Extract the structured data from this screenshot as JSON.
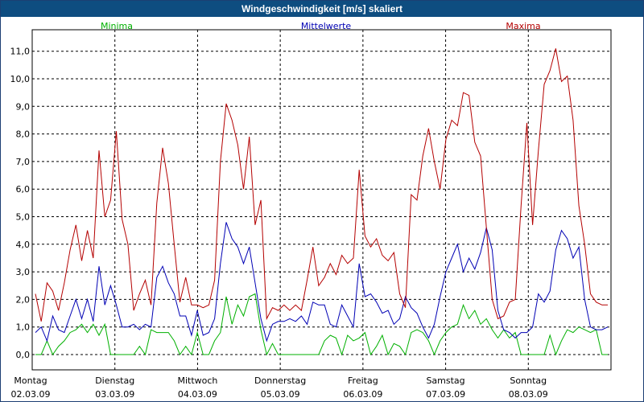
{
  "window": {
    "title": "Windgeschwindigkeit [m/s] skaliert"
  },
  "chart_data": {
    "type": "line",
    "title": "Windgeschwindigkeit [m/s] skaliert",
    "ylim": [
      0,
      11.6
    ],
    "y_ticks": [
      "0,0",
      "1,0",
      "2,0",
      "3,0",
      "4,0",
      "5,0",
      "6,0",
      "7,0",
      "8,0",
      "9,0",
      "10,0",
      "11,0"
    ],
    "days": [
      {
        "day": "Montag",
        "date": "02.03.09"
      },
      {
        "day": "Dienstag",
        "date": "03.03.09"
      },
      {
        "day": "Mittwoch",
        "date": "04.03.09"
      },
      {
        "day": "Donnerstag",
        "date": "05.03.09"
      },
      {
        "day": "Freitag",
        "date": "06.03.09"
      },
      {
        "day": "Samstag",
        "date": "07.03.09"
      },
      {
        "day": "Sonntag",
        "date": "08.03.09"
      }
    ],
    "grid": true,
    "legend_position": "top",
    "series": [
      {
        "name": "Minima",
        "color": "#00b000",
        "values": [
          0,
          0,
          0.5,
          0,
          0.3,
          0.5,
          0.8,
          0.9,
          1.1,
          0.8,
          1.1,
          0.7,
          1.1,
          0,
          0,
          0,
          0,
          0,
          0.3,
          0,
          0.9,
          0.8,
          0.8,
          0.8,
          0.5,
          0,
          0.3,
          0,
          0.8,
          0,
          0,
          0.5,
          0.8,
          2.1,
          1.1,
          1.8,
          1.4,
          2.1,
          2.2,
          0.9,
          0,
          0.4,
          0,
          0,
          0,
          0,
          0,
          0,
          0,
          0,
          0.5,
          0.7,
          0.6,
          0,
          0.7,
          0.5,
          0.6,
          0.8,
          0,
          0.3,
          0.7,
          0,
          0.4,
          0.3,
          0,
          0.8,
          0.9,
          0.8,
          0.5,
          0,
          0.5,
          0.8,
          1,
          1.1,
          1.8,
          1.3,
          1.6,
          1.1,
          1.3,
          0.9,
          0.6,
          0.9,
          0.6,
          0.8,
          0,
          0,
          0,
          0,
          0,
          0.7,
          0,
          0.5,
          0.9,
          0.8,
          1,
          0.9,
          0.8,
          0.9,
          0,
          0
        ]
      },
      {
        "name": "Mittelwerte",
        "color": "#0000b4",
        "values": [
          0.8,
          1,
          0.5,
          1.4,
          0.9,
          0.8,
          1.4,
          2,
          1.3,
          2,
          1.2,
          3.2,
          1.8,
          2.5,
          1.8,
          1,
          1,
          1.1,
          0.9,
          1.1,
          1,
          2.8,
          3.2,
          2.6,
          2.2,
          1.4,
          1.4,
          0.7,
          1.6,
          0.7,
          0.8,
          1.3,
          3.3,
          4.8,
          4.2,
          3.9,
          3.3,
          3.9,
          2.6,
          1.3,
          0.5,
          1.1,
          1.2,
          1.2,
          1.3,
          1.2,
          1.4,
          1.1,
          1.9,
          1.8,
          1.8,
          1.1,
          1,
          1.8,
          1.4,
          1,
          3.3,
          2.1,
          2.2,
          1.9,
          1.5,
          1.6,
          1.1,
          1.3,
          2.1,
          1.7,
          1.5,
          1,
          0.6,
          1.1,
          2.1,
          3,
          3.5,
          4,
          3,
          3.5,
          3.1,
          3.7,
          4.6,
          3.8,
          1.6,
          0.9,
          0.8,
          0.6,
          0.8,
          0.8,
          1,
          2.2,
          1.9,
          2.3,
          3.8,
          4.5,
          4.2,
          3.5,
          3.9,
          2,
          1,
          0.9,
          0.9,
          1
        ]
      },
      {
        "name": "Maxima",
        "color": "#b40000",
        "values": [
          2.2,
          1.2,
          2.6,
          2.3,
          1.6,
          2.6,
          3.8,
          4.7,
          3.4,
          4.5,
          3.5,
          7.4,
          5,
          5.6,
          8.1,
          4.9,
          4,
          1.6,
          2.2,
          2.7,
          1.8,
          5.5,
          7.5,
          6.2,
          4,
          1.9,
          2.8,
          1.8,
          1.8,
          1.7,
          1.8,
          2.7,
          7,
          9.1,
          8.5,
          7.6,
          6,
          7.9,
          4.7,
          5.6,
          1.3,
          1.7,
          1.6,
          1.8,
          1.6,
          1.8,
          1.6,
          2.7,
          3.9,
          2.5,
          2.8,
          3.3,
          2.9,
          3.6,
          3.3,
          3.5,
          6.7,
          4.3,
          3.9,
          4.2,
          3.6,
          3.4,
          3.7,
          2.2,
          1.7,
          5.8,
          5.6,
          7.2,
          8.2,
          7,
          6,
          7.8,
          8.5,
          8.3,
          9.5,
          9.4,
          7.7,
          7.2,
          4.6,
          2,
          1.3,
          1.4,
          1.9,
          2,
          5.4,
          8.4,
          4.7,
          7.4,
          9.8,
          10.3,
          11.1,
          9.9,
          10.1,
          8.5,
          5.4,
          4,
          2.2,
          1.9,
          1.8,
          1.8
        ]
      }
    ]
  }
}
